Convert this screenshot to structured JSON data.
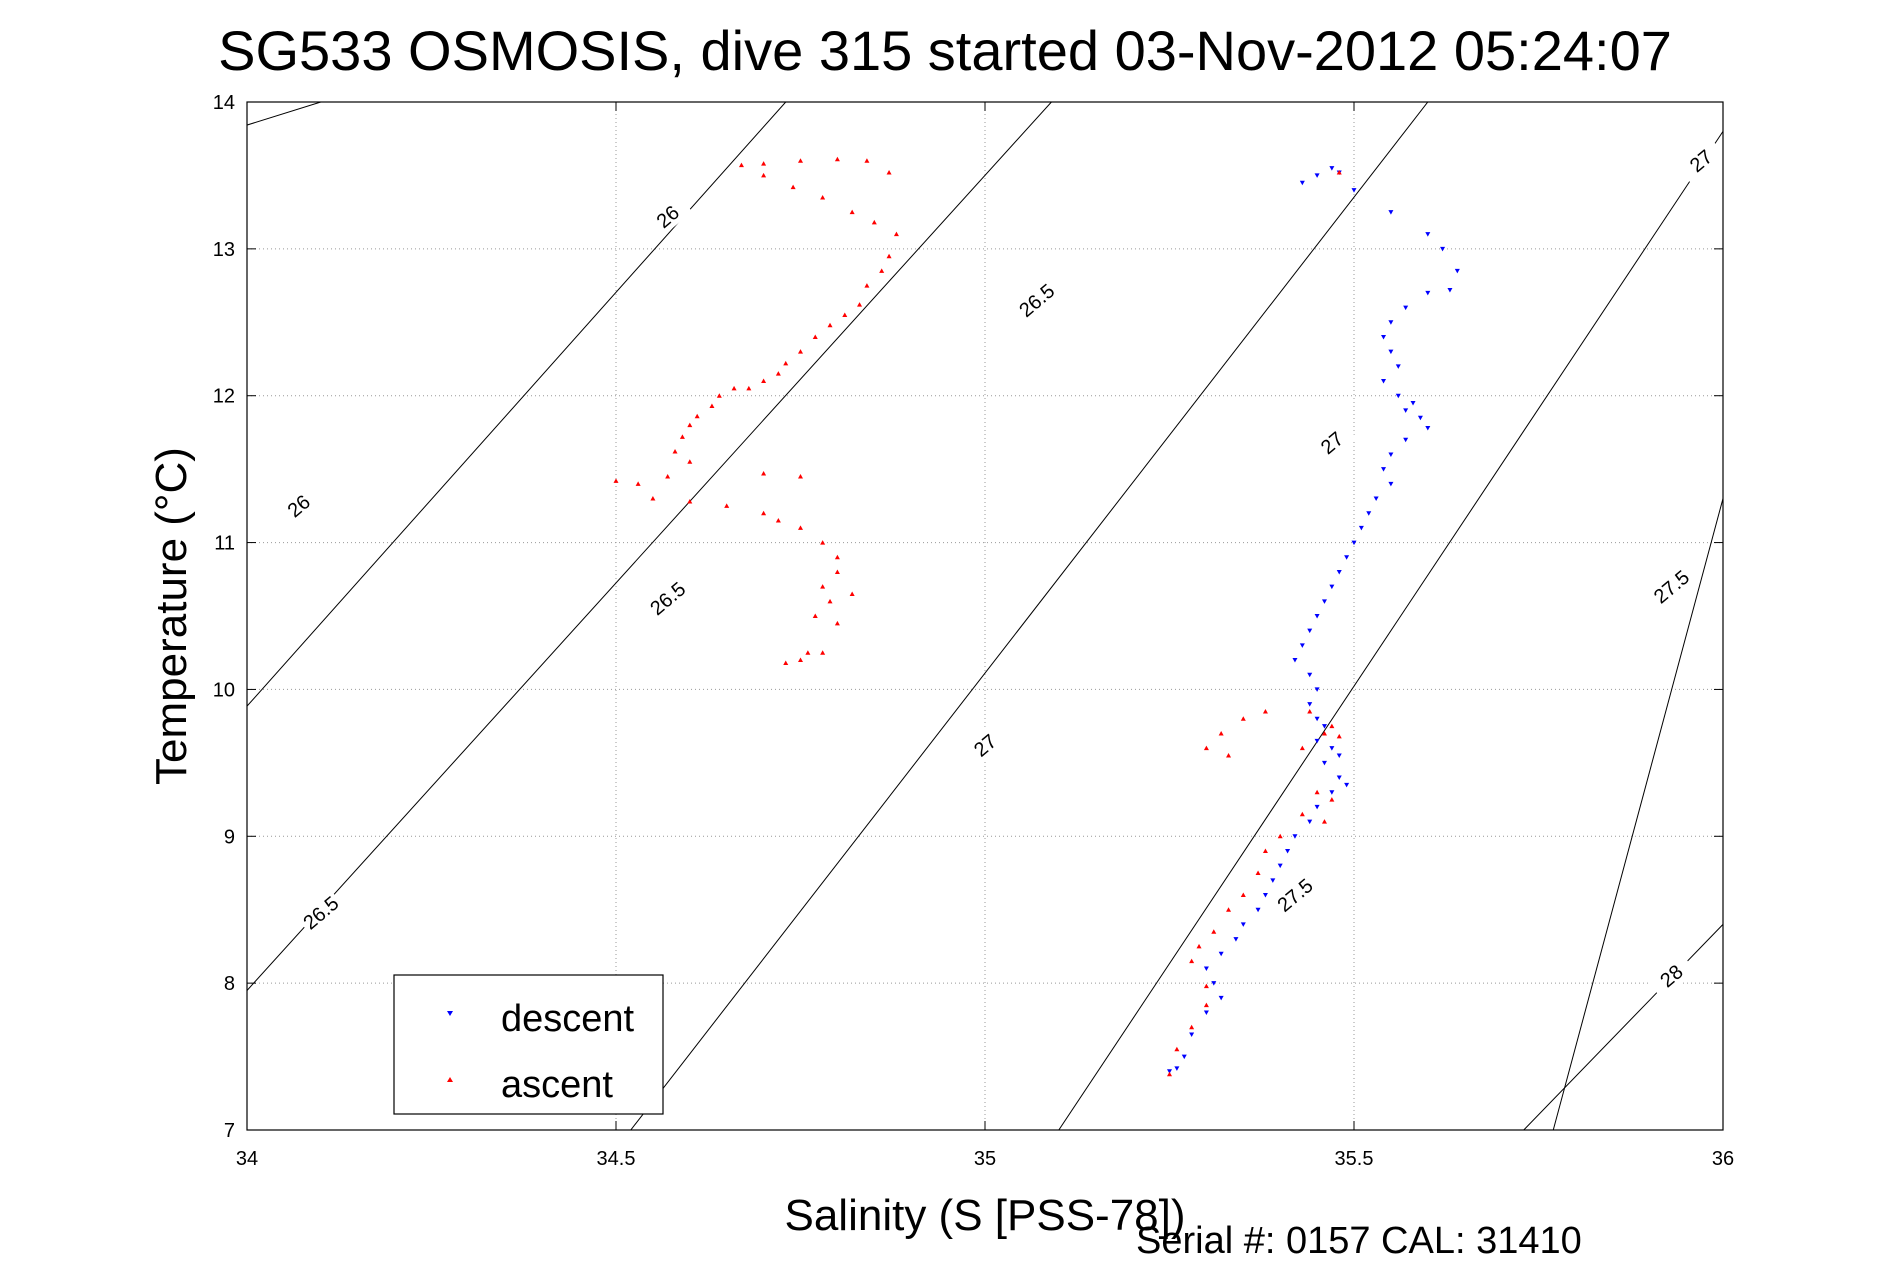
{
  "chart_data": {
    "type": "scatter",
    "title": "SG533 OSMOSIS, dive 315 started 03-Nov-2012 05:24:07",
    "xlabel": "Salinity (S [PSS-78])",
    "ylabel": "Temperature (°C)",
    "xlim": [
      34,
      36
    ],
    "ylim": [
      7,
      14
    ],
    "xticks": [
      "34",
      "34.5",
      "35",
      "35.5",
      "36"
    ],
    "yticks": [
      "7",
      "8",
      "9",
      "10",
      "11",
      "12",
      "13",
      "14"
    ],
    "grid": true,
    "legend_position": "bottom-left",
    "footer": "Serial #: 0157  CAL: 31410",
    "series": [
      {
        "name": "descent",
        "color": "#0000ff",
        "marker": "triangle-down",
        "points": [
          [
            35.43,
            13.45
          ],
          [
            35.45,
            13.5
          ],
          [
            35.47,
            13.55
          ],
          [
            35.48,
            13.52
          ],
          [
            35.5,
            13.4
          ],
          [
            35.55,
            13.25
          ],
          [
            35.6,
            13.1
          ],
          [
            35.62,
            13.0
          ],
          [
            35.64,
            12.85
          ],
          [
            35.63,
            12.72
          ],
          [
            35.6,
            12.7
          ],
          [
            35.57,
            12.6
          ],
          [
            35.55,
            12.5
          ],
          [
            35.54,
            12.4
          ],
          [
            35.55,
            12.3
          ],
          [
            35.56,
            12.2
          ],
          [
            35.54,
            12.1
          ],
          [
            35.56,
            12.0
          ],
          [
            35.58,
            11.95
          ],
          [
            35.57,
            11.9
          ],
          [
            35.59,
            11.85
          ],
          [
            35.6,
            11.78
          ],
          [
            35.57,
            11.7
          ],
          [
            35.55,
            11.6
          ],
          [
            35.54,
            11.5
          ],
          [
            35.55,
            11.4
          ],
          [
            35.53,
            11.3
          ],
          [
            35.52,
            11.2
          ],
          [
            35.51,
            11.1
          ],
          [
            35.5,
            11.0
          ],
          [
            35.49,
            10.9
          ],
          [
            35.48,
            10.8
          ],
          [
            35.47,
            10.7
          ],
          [
            35.46,
            10.6
          ],
          [
            35.45,
            10.5
          ],
          [
            35.44,
            10.4
          ],
          [
            35.43,
            10.3
          ],
          [
            35.42,
            10.2
          ],
          [
            35.44,
            10.1
          ],
          [
            35.45,
            10.0
          ],
          [
            35.44,
            9.9
          ],
          [
            35.45,
            9.8
          ],
          [
            35.46,
            9.75
          ],
          [
            35.45,
            9.65
          ],
          [
            35.47,
            9.6
          ],
          [
            35.48,
            9.55
          ],
          [
            35.46,
            9.5
          ],
          [
            35.48,
            9.4
          ],
          [
            35.49,
            9.35
          ],
          [
            35.47,
            9.3
          ],
          [
            35.45,
            9.2
          ],
          [
            35.44,
            9.1
          ],
          [
            35.42,
            9.0
          ],
          [
            35.41,
            8.9
          ],
          [
            35.4,
            8.8
          ],
          [
            35.39,
            8.7
          ],
          [
            35.38,
            8.6
          ],
          [
            35.37,
            8.5
          ],
          [
            35.35,
            8.4
          ],
          [
            35.34,
            8.3
          ],
          [
            35.32,
            8.2
          ],
          [
            35.3,
            8.1
          ],
          [
            35.31,
            8.0
          ],
          [
            35.32,
            7.9
          ],
          [
            35.3,
            7.8
          ],
          [
            35.28,
            7.65
          ],
          [
            35.27,
            7.5
          ],
          [
            35.26,
            7.42
          ],
          [
            35.25,
            7.4
          ]
        ]
      },
      {
        "name": "ascent",
        "color": "#ff0000",
        "marker": "triangle-up",
        "points": [
          [
            34.87,
            13.52
          ],
          [
            34.84,
            13.6
          ],
          [
            34.8,
            13.61
          ],
          [
            34.75,
            13.6
          ],
          [
            34.7,
            13.58
          ],
          [
            34.67,
            13.57
          ],
          [
            34.7,
            13.5
          ],
          [
            34.74,
            13.42
          ],
          [
            34.78,
            13.35
          ],
          [
            34.82,
            13.25
          ],
          [
            34.85,
            13.18
          ],
          [
            34.88,
            13.1
          ],
          [
            34.87,
            12.95
          ],
          [
            34.86,
            12.85
          ],
          [
            34.84,
            12.75
          ],
          [
            34.83,
            12.62
          ],
          [
            34.81,
            12.55
          ],
          [
            34.79,
            12.48
          ],
          [
            34.77,
            12.4
          ],
          [
            34.75,
            12.3
          ],
          [
            34.73,
            12.22
          ],
          [
            34.72,
            12.15
          ],
          [
            34.7,
            12.1
          ],
          [
            34.68,
            12.05
          ],
          [
            34.66,
            12.05
          ],
          [
            34.64,
            12.0
          ],
          [
            34.63,
            11.93
          ],
          [
            34.61,
            11.86
          ],
          [
            34.6,
            11.8
          ],
          [
            34.59,
            11.72
          ],
          [
            34.58,
            11.62
          ],
          [
            34.6,
            11.55
          ],
          [
            34.57,
            11.45
          ],
          [
            34.53,
            11.4
          ],
          [
            34.5,
            11.42
          ],
          [
            34.55,
            11.3
          ],
          [
            34.6,
            11.28
          ],
          [
            34.65,
            11.25
          ],
          [
            34.7,
            11.2
          ],
          [
            34.72,
            11.15
          ],
          [
            34.75,
            11.1
          ],
          [
            34.78,
            11.0
          ],
          [
            34.8,
            10.9
          ],
          [
            34.8,
            10.8
          ],
          [
            34.78,
            10.7
          ],
          [
            34.79,
            10.6
          ],
          [
            34.77,
            10.5
          ],
          [
            34.8,
            10.45
          ],
          [
            34.82,
            10.65
          ],
          [
            34.78,
            10.25
          ],
          [
            34.75,
            10.2
          ],
          [
            34.73,
            10.18
          ],
          [
            34.76,
            10.25
          ],
          [
            34.75,
            11.45
          ],
          [
            34.7,
            11.47
          ],
          [
            35.48,
            13.52
          ],
          [
            35.47,
            9.75
          ],
          [
            35.46,
            9.7
          ],
          [
            35.48,
            9.68
          ],
          [
            35.44,
            9.85
          ],
          [
            35.43,
            9.6
          ],
          [
            35.38,
            9.85
          ],
          [
            35.35,
            9.8
          ],
          [
            35.32,
            9.7
          ],
          [
            35.3,
            9.6
          ],
          [
            35.33,
            9.55
          ],
          [
            35.45,
            9.3
          ],
          [
            35.47,
            9.25
          ],
          [
            35.43,
            9.15
          ],
          [
            35.46,
            9.1
          ],
          [
            35.4,
            9.0
          ],
          [
            35.38,
            8.9
          ],
          [
            35.37,
            8.75
          ],
          [
            35.35,
            8.6
          ],
          [
            35.33,
            8.5
          ],
          [
            35.31,
            8.35
          ],
          [
            35.29,
            8.25
          ],
          [
            35.28,
            8.15
          ],
          [
            35.3,
            7.98
          ],
          [
            35.3,
            7.85
          ],
          [
            35.28,
            7.7
          ],
          [
            35.26,
            7.55
          ],
          [
            35.25,
            7.38
          ]
        ]
      }
    ],
    "density_contours": [
      {
        "sigma": 26.0,
        "labels": [
          "26",
          "26"
        ]
      },
      {
        "sigma": 26.5,
        "labels": [
          "26.5",
          "26.5",
          "26.5"
        ]
      },
      {
        "sigma": 27.0,
        "labels": [
          "27",
          "27",
          "27"
        ]
      },
      {
        "sigma": 27.5,
        "labels": [
          "27.5",
          "27.5"
        ]
      },
      {
        "sigma": 28.0,
        "labels": [
          "28"
        ]
      }
    ]
  }
}
